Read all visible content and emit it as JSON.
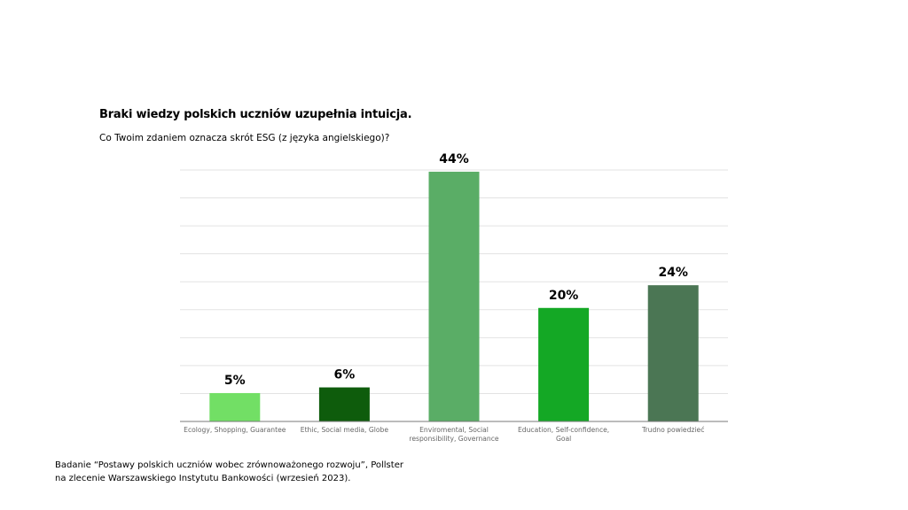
{
  "header": {
    "title": "Braki wiedzy polskich uczniów uzupełnia intuicja.",
    "subtitle": "Co Twoim zdaniem oznacza skrót ESG (z języka angielskiego)?"
  },
  "footer": {
    "source_line1": "Badanie “Postawy polskich uczniów wobec zrównoważonego rozwoju”, Pollster",
    "source_line2": "na zlecenie Warszawskiego Instytutu Bankowości (wrzesień 2023)."
  },
  "chart_data": {
    "type": "bar",
    "title": "Braki wiedzy polskich uczniów uzupełnia intuicja.",
    "subtitle": "Co Twoim zdaniem oznacza skrót ESG (z języka angielskiego)?",
    "categories": [
      [
        "Ecology, Shopping, Guarantee"
      ],
      [
        "Ethic, Social media, Globe"
      ],
      [
        "Enviromental, Social",
        "responsibility, Governance"
      ],
      [
        "Education, Self-confidence,",
        "Goal"
      ],
      [
        "Trudno powiedzieć"
      ]
    ],
    "values": [
      5,
      6,
      44,
      20,
      24
    ],
    "value_labels": [
      "5%",
      "6%",
      "44%",
      "20%",
      "24%"
    ],
    "colors": [
      "#72df65",
      "#0e5c0c",
      "#5aad66",
      "#14a825",
      "#4b7654"
    ],
    "ylim": [
      0,
      45
    ],
    "grid": true,
    "xlabel": "",
    "ylabel": ""
  }
}
